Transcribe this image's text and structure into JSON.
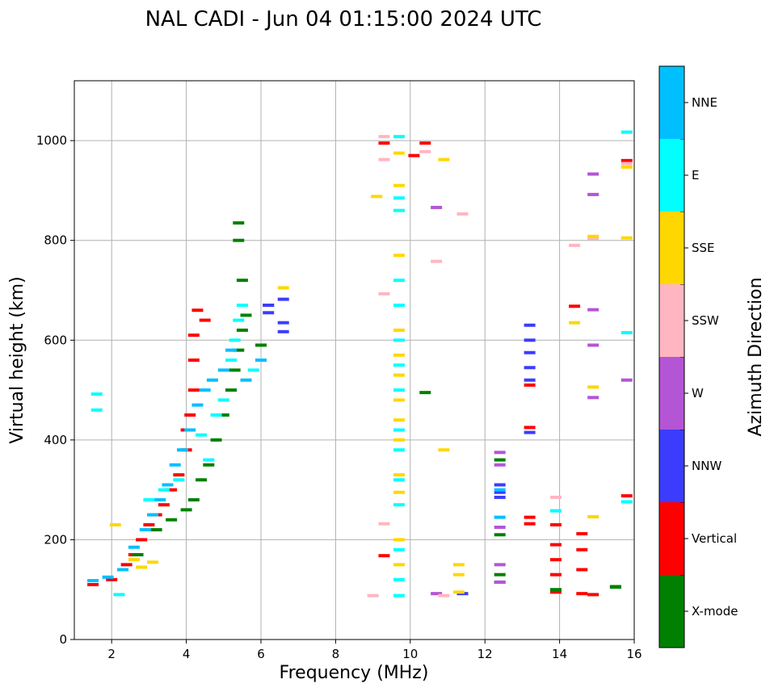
{
  "chart_data": {
    "type": "scatter",
    "title": "NAL CADI - Jun 04 01:15:00 2024 UTC",
    "xlabel": "Frequency (MHz)",
    "ylabel": "Virtual height (km)",
    "xlim": [
      1,
      16
    ],
    "ylim": [
      0,
      1120
    ],
    "xticks": [
      2,
      4,
      6,
      8,
      10,
      12,
      14,
      16
    ],
    "yticks": [
      0,
      200,
      400,
      600,
      800,
      1000
    ],
    "grid": true,
    "colorbar": {
      "label": "Azimuth Direction",
      "categories": [
        "X-mode",
        "Vertical",
        "NNW",
        "W",
        "SSW",
        "SSE",
        "E",
        "NNE"
      ],
      "colors": [
        "#008000",
        "#ff0000",
        "#3c3cff",
        "#b455d6",
        "#ffb6c1",
        "#ffd700",
        "#00ffff",
        "#00bfff"
      ]
    },
    "series": [
      {
        "name": "Vertical",
        "points": [
          [
            1.5,
            110
          ],
          [
            2.0,
            120
          ],
          [
            2.4,
            150
          ],
          [
            2.6,
            170
          ],
          [
            2.8,
            200
          ],
          [
            3.0,
            230
          ],
          [
            3.2,
            250
          ],
          [
            3.4,
            270
          ],
          [
            3.6,
            300
          ],
          [
            3.8,
            330
          ],
          [
            4.0,
            380
          ],
          [
            4.0,
            420
          ],
          [
            4.1,
            450
          ],
          [
            4.2,
            500
          ],
          [
            4.2,
            560
          ],
          [
            4.2,
            610
          ],
          [
            4.3,
            660
          ],
          [
            4.5,
            640
          ],
          [
            9.3,
            995
          ],
          [
            9.3,
            168
          ],
          [
            10.1,
            970
          ],
          [
            10.4,
            995
          ],
          [
            13.2,
            232
          ],
          [
            13.2,
            245
          ],
          [
            13.2,
            425
          ],
          [
            13.2,
            510
          ],
          [
            13.9,
            95
          ],
          [
            13.9,
            130
          ],
          [
            13.9,
            160
          ],
          [
            13.9,
            190
          ],
          [
            13.9,
            230
          ],
          [
            14.6,
            92
          ],
          [
            14.6,
            140
          ],
          [
            14.6,
            180
          ],
          [
            14.6,
            212
          ],
          [
            14.9,
            90
          ],
          [
            14.4,
            668
          ],
          [
            15.8,
            960
          ],
          [
            15.8,
            288
          ]
        ]
      },
      {
        "name": "X-mode",
        "points": [
          [
            2.7,
            170
          ],
          [
            3.2,
            220
          ],
          [
            3.6,
            240
          ],
          [
            4.0,
            260
          ],
          [
            4.2,
            280
          ],
          [
            4.4,
            320
          ],
          [
            4.6,
            350
          ],
          [
            4.8,
            400
          ],
          [
            5.0,
            450
          ],
          [
            5.2,
            500
          ],
          [
            5.3,
            540
          ],
          [
            5.4,
            580
          ],
          [
            5.5,
            620
          ],
          [
            5.6,
            650
          ],
          [
            5.5,
            720
          ],
          [
            5.4,
            800
          ],
          [
            5.4,
            835
          ],
          [
            6.2,
            670
          ],
          [
            6.0,
            590
          ],
          [
            10.4,
            495
          ],
          [
            12.4,
            130
          ],
          [
            12.4,
            210
          ],
          [
            12.4,
            360
          ],
          [
            13.9,
            100
          ],
          [
            15.5,
            105
          ],
          [
            15.5,
            106
          ]
        ]
      },
      {
        "name": "NNW",
        "points": [
          [
            6.2,
            670
          ],
          [
            6.2,
            655
          ],
          [
            6.6,
            682
          ],
          [
            6.6,
            635
          ],
          [
            6.6,
            617
          ],
          [
            11.4,
            92
          ],
          [
            12.4,
            285
          ],
          [
            12.4,
            295
          ],
          [
            12.4,
            310
          ],
          [
            12.4,
            115
          ],
          [
            13.2,
            630
          ],
          [
            13.2,
            600
          ],
          [
            13.2,
            575
          ],
          [
            13.2,
            545
          ],
          [
            13.2,
            520
          ],
          [
            13.2,
            415
          ]
        ]
      },
      {
        "name": "W",
        "points": [
          [
            10.7,
            92
          ],
          [
            10.7,
            866
          ],
          [
            12.4,
            115
          ],
          [
            12.4,
            150
          ],
          [
            12.4,
            225
          ],
          [
            12.4,
            350
          ],
          [
            12.4,
            375
          ],
          [
            14.9,
            933
          ],
          [
            14.9,
            892
          ],
          [
            14.9,
            661
          ],
          [
            14.9,
            590
          ],
          [
            14.9,
            485
          ],
          [
            15.8,
            520
          ]
        ]
      },
      {
        "name": "SSW",
        "points": [
          [
            9.3,
            1008
          ],
          [
            9.3,
            962
          ],
          [
            9.3,
            693
          ],
          [
            9.3,
            232
          ],
          [
            9.0,
            88
          ],
          [
            10.4,
            978
          ],
          [
            10.7,
            758
          ],
          [
            10.9,
            88
          ],
          [
            11.4,
            853
          ],
          [
            13.9,
            285
          ],
          [
            14.4,
            790
          ],
          [
            14.9,
            804
          ],
          [
            15.8,
            954
          ]
        ]
      },
      {
        "name": "SSE",
        "points": [
          [
            2.1,
            230
          ],
          [
            2.6,
            160
          ],
          [
            2.8,
            145
          ],
          [
            3.1,
            155
          ],
          [
            6.6,
            705
          ],
          [
            9.1,
            888
          ],
          [
            9.7,
            770
          ],
          [
            9.7,
            620
          ],
          [
            9.7,
            570
          ],
          [
            9.7,
            530
          ],
          [
            9.7,
            480
          ],
          [
            9.7,
            440
          ],
          [
            9.7,
            400
          ],
          [
            9.7,
            330
          ],
          [
            9.7,
            295
          ],
          [
            9.7,
            200
          ],
          [
            9.7,
            150
          ],
          [
            9.7,
            910
          ],
          [
            9.7,
            975
          ],
          [
            10.9,
            962
          ],
          [
            10.9,
            380
          ],
          [
            11.3,
            150
          ],
          [
            11.3,
            130
          ],
          [
            11.3,
            95
          ],
          [
            14.4,
            635
          ],
          [
            14.9,
            808
          ],
          [
            14.9,
            506
          ],
          [
            14.9,
            246
          ],
          [
            15.8,
            947
          ],
          [
            15.8,
            805
          ]
        ]
      },
      {
        "name": "E",
        "points": [
          [
            1.6,
            492
          ],
          [
            1.6,
            460
          ],
          [
            2.2,
            90
          ],
          [
            3.0,
            280
          ],
          [
            3.4,
            300
          ],
          [
            3.8,
            320
          ],
          [
            4.4,
            410
          ],
          [
            4.6,
            360
          ],
          [
            4.8,
            450
          ],
          [
            5.0,
            480
          ],
          [
            5.2,
            560
          ],
          [
            5.3,
            600
          ],
          [
            5.4,
            640
          ],
          [
            5.5,
            670
          ],
          [
            5.8,
            540
          ],
          [
            9.7,
            1008
          ],
          [
            9.7,
            885
          ],
          [
            9.7,
            860
          ],
          [
            9.7,
            720
          ],
          [
            9.7,
            670
          ],
          [
            9.7,
            600
          ],
          [
            9.7,
            550
          ],
          [
            9.7,
            500
          ],
          [
            9.7,
            420
          ],
          [
            9.7,
            380
          ],
          [
            9.7,
            320
          ],
          [
            9.7,
            270
          ],
          [
            9.7,
            180
          ],
          [
            9.7,
            120
          ],
          [
            9.7,
            88
          ],
          [
            13.9,
            258
          ],
          [
            15.8,
            1017
          ],
          [
            15.8,
            615
          ],
          [
            15.8,
            276
          ]
        ]
      },
      {
        "name": "NNE",
        "points": [
          [
            1.5,
            118
          ],
          [
            1.9,
            125
          ],
          [
            2.3,
            140
          ],
          [
            2.6,
            185
          ],
          [
            2.9,
            220
          ],
          [
            3.1,
            250
          ],
          [
            3.3,
            280
          ],
          [
            3.5,
            310
          ],
          [
            3.7,
            350
          ],
          [
            3.9,
            380
          ],
          [
            4.1,
            420
          ],
          [
            4.3,
            470
          ],
          [
            4.5,
            500
          ],
          [
            4.7,
            520
          ],
          [
            5.0,
            540
          ],
          [
            5.2,
            580
          ],
          [
            5.6,
            520
          ],
          [
            6.0,
            560
          ],
          [
            12.4,
            245
          ],
          [
            12.4,
            300
          ]
        ]
      }
    ]
  }
}
